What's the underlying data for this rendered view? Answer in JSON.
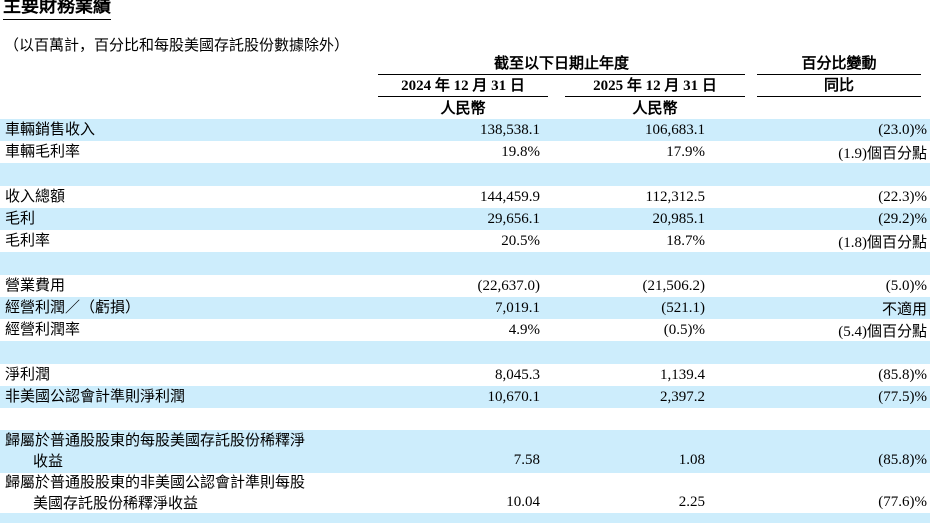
{
  "page": {
    "title": "主要財務業績",
    "subtitle": "（以百萬計，百分比和每股美國存託股份數據除外）"
  },
  "colors": {
    "highlight": "#cdedfc",
    "text": "#000000"
  },
  "table": {
    "header": {
      "period_group": "截至以下日期止年度",
      "change_group": "百分比變動",
      "col_2024": "2024 年 12 月 31 日",
      "col_2025": "2025 年 12 月 31 日",
      "col_yoy": "同比",
      "currency_left": "人民幣",
      "currency_right": "人民幣"
    },
    "rows": [
      {
        "label": "車輛銷售收入",
        "v2024": "138,538.1",
        "v2025": "106,683.1",
        "change": "(23.0)%"
      },
      {
        "label": "車輛毛利率",
        "v2024": "19.8%",
        "v2025": "17.9%",
        "change": "(1.9)個百分點"
      },
      {
        "label": "收入總額",
        "v2024": "144,459.9",
        "v2025": "112,312.5",
        "change": "(22.3)%"
      },
      {
        "label": "毛利",
        "v2024": "29,656.1",
        "v2025": "20,985.1",
        "change": "(29.2)%"
      },
      {
        "label": "毛利率",
        "v2024": "20.5%",
        "v2025": "18.7%",
        "change": "(1.8)個百分點"
      },
      {
        "label": "營業費用",
        "v2024": "(22,637.0)",
        "v2025": "(21,506.2)",
        "change": "(5.0)%"
      },
      {
        "label": "經營利潤／（虧損）",
        "v2024": "7,019.1",
        "v2025": "(521.1)",
        "change": "不適用"
      },
      {
        "label": "經營利潤率",
        "v2024": "4.9%",
        "v2025": "(0.5)%",
        "change": "(5.4)個百分點"
      },
      {
        "label": "淨利潤",
        "v2024": "8,045.3",
        "v2025": "1,139.4",
        "change": "(85.8)%"
      },
      {
        "label": "非美國公認會計準則淨利潤",
        "v2024": "10,670.1",
        "v2025": "2,397.2",
        "change": "(77.5)%"
      },
      {
        "label_line1": "歸屬於普通股股東的每股美國存託股份稀釋淨",
        "label_line2": "收益",
        "v2024": "7.58",
        "v2025": "1.08",
        "change": "(85.8)%"
      },
      {
        "label_line1": "歸屬於普通股股東的非美國公認會計準則每股",
        "label_line2": "美國存託股份稀釋淨收益",
        "v2024": "10.04",
        "v2025": "2.25",
        "change": "(77.6)%"
      }
    ]
  }
}
